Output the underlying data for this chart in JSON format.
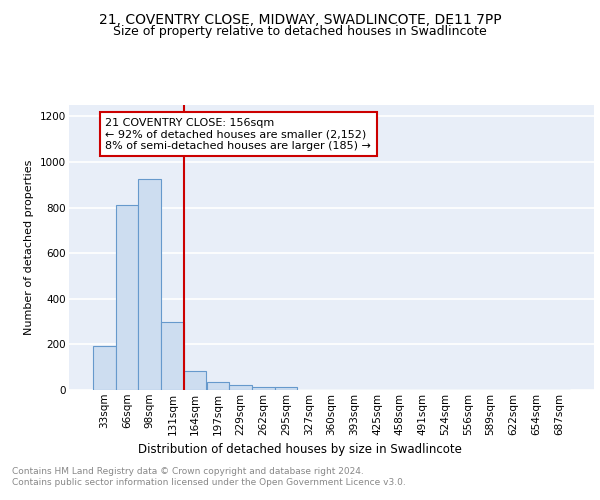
{
  "title": "21, COVENTRY CLOSE, MIDWAY, SWADLINCOTE, DE11 7PP",
  "subtitle": "Size of property relative to detached houses in Swadlincote",
  "xlabel": "Distribution of detached houses by size in Swadlincote",
  "ylabel": "Number of detached properties",
  "bin_labels": [
    "33sqm",
    "66sqm",
    "98sqm",
    "131sqm",
    "164sqm",
    "197sqm",
    "229sqm",
    "262sqm",
    "295sqm",
    "327sqm",
    "360sqm",
    "393sqm",
    "425sqm",
    "458sqm",
    "491sqm",
    "524sqm",
    "556sqm",
    "589sqm",
    "622sqm",
    "654sqm",
    "687sqm"
  ],
  "bar_values": [
    195,
    810,
    925,
    300,
    85,
    35,
    20,
    15,
    12,
    0,
    0,
    0,
    0,
    0,
    0,
    0,
    0,
    0,
    0,
    0,
    0
  ],
  "bar_color": "#cdddf0",
  "bar_edge_color": "#6699cc",
  "red_line_x": 3.5,
  "annotation_text": "21 COVENTRY CLOSE: 156sqm\n← 92% of detached houses are smaller (2,152)\n8% of semi-detached houses are larger (185) →",
  "annotation_box_color": "#ffffff",
  "annotation_box_edge": "#cc0000",
  "ylim": [
    0,
    1250
  ],
  "yticks": [
    0,
    200,
    400,
    600,
    800,
    1000,
    1200
  ],
  "footnote": "Contains HM Land Registry data © Crown copyright and database right 2024.\nContains public sector information licensed under the Open Government Licence v3.0.",
  "background_color": "#e8eef8",
  "grid_color": "#ffffff",
  "title_fontsize": 10,
  "subtitle_fontsize": 9,
  "xlabel_fontsize": 8.5,
  "ylabel_fontsize": 8,
  "tick_fontsize": 7.5,
  "annotation_fontsize": 8,
  "footnote_fontsize": 6.5
}
